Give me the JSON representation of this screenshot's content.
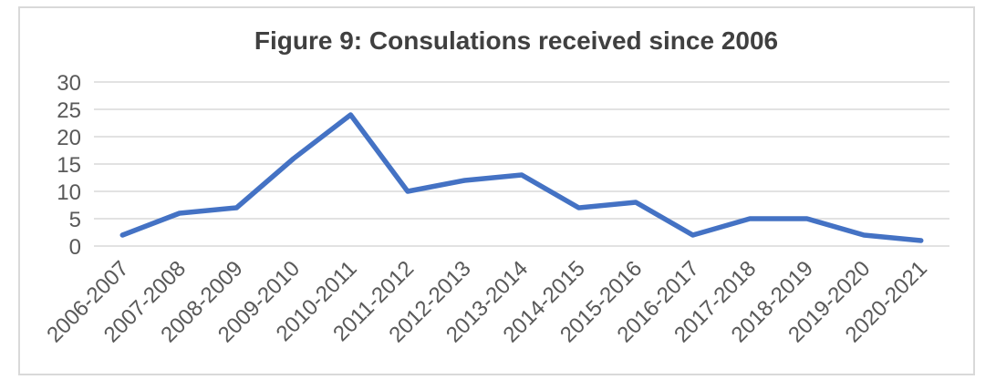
{
  "chart_data": {
    "type": "line",
    "title": "Figure 9: Consulations received since 2006",
    "categories": [
      "2006-2007",
      "2007-2008",
      "2008-2009",
      "2009-2010",
      "2010-2011",
      "2011-2012",
      "2012-2013",
      "2013-2014",
      "2014-2015",
      "2015-2016",
      "2016-2017",
      "2017-2018",
      "2018-2019",
      "2019-2020",
      "2020-2021"
    ],
    "values": [
      2,
      6,
      7,
      16,
      24,
      10,
      12,
      13,
      7,
      8,
      2,
      5,
      5,
      2,
      1
    ],
    "xlabel": "",
    "ylabel": "",
    "ylim": [
      0,
      30
    ],
    "yticks": [
      0,
      5,
      10,
      15,
      20,
      25,
      30
    ],
    "grid": true,
    "legend": false,
    "x_label_rotation_deg": -45,
    "colors": {
      "line": "#4472C4",
      "gridline": "#D9D9D9",
      "chart_border": "#D9D9D9",
      "title_text": "#404040",
      "axis_text": "#595959"
    }
  }
}
